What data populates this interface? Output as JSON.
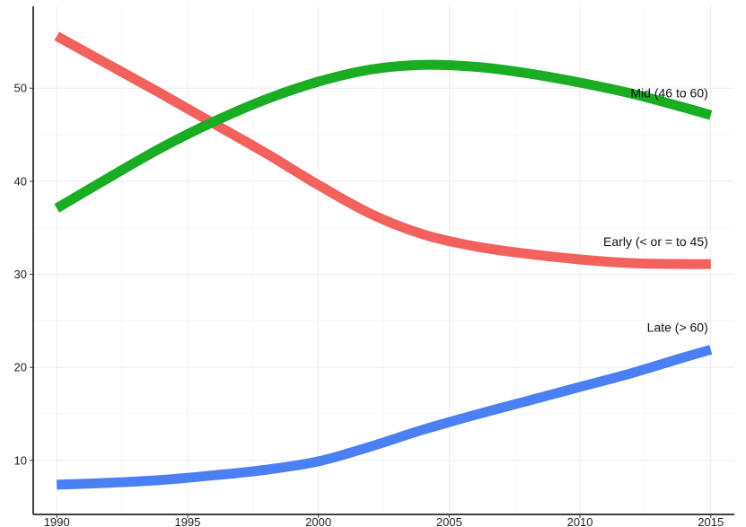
{
  "chart_data": {
    "type": "line",
    "title": "",
    "xlabel": "",
    "ylabel": "",
    "xlim": [
      1989.1,
      2015.9
    ],
    "ylim": [
      4.2,
      58.8
    ],
    "x_ticks": [
      1990,
      1995,
      2000,
      2005,
      2010,
      2015
    ],
    "y_ticks": [
      10,
      20,
      30,
      40,
      50
    ],
    "grid": true,
    "legend": "direct-labels",
    "series": [
      {
        "name": "Early (< or = to 45)",
        "color": "#f2615c",
        "x": [
          1990,
          1992,
          1994,
          1996,
          1998,
          2000,
          2002,
          2004,
          2006,
          2008,
          2010,
          2012,
          2014,
          2015
        ],
        "y": [
          55.6,
          52.5,
          49.4,
          46.2,
          43.0,
          39.6,
          36.5,
          34.3,
          33.0,
          32.2,
          31.6,
          31.2,
          31.1,
          31.1
        ]
      },
      {
        "name": "Mid (46 to 60)",
        "color": "#1aad24",
        "x": [
          1990,
          1992,
          1994,
          1996,
          1998,
          2000,
          2002,
          2004,
          2006,
          2008,
          2010,
          2012,
          2014,
          2015
        ],
        "y": [
          37.1,
          40.4,
          43.6,
          46.4,
          48.8,
          50.7,
          52.0,
          52.5,
          52.3,
          51.6,
          50.6,
          49.4,
          47.9,
          47.1
        ]
      },
      {
        "name": "Late (> 60)",
        "color": "#4a80f4",
        "x": [
          1990,
          1992,
          1994,
          1996,
          1998,
          2000,
          2002,
          2004,
          2006,
          2008,
          2010,
          2012,
          2014,
          2015
        ],
        "y": [
          7.4,
          7.6,
          7.9,
          8.4,
          9.0,
          9.9,
          11.5,
          13.3,
          14.9,
          16.4,
          17.9,
          19.4,
          21.1,
          21.9
        ]
      }
    ]
  }
}
